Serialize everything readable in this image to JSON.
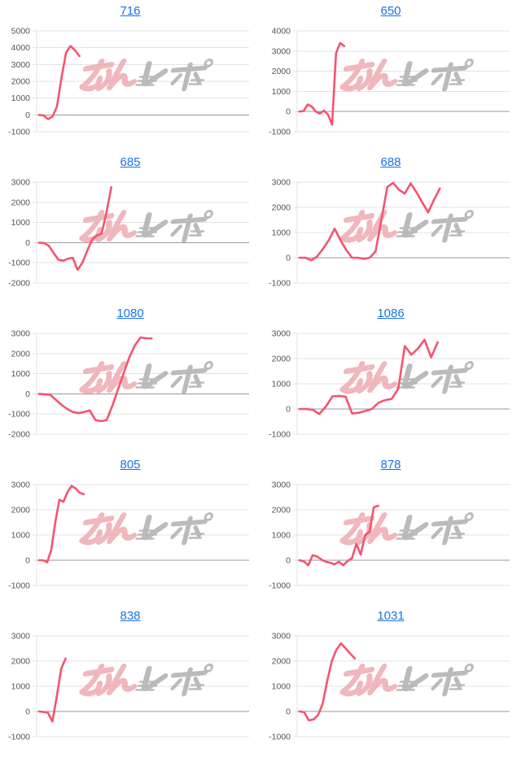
{
  "page": {
    "background": "#ffffff",
    "watermark_text": "みんレポ"
  },
  "colors": {
    "line": "#f4546e",
    "link": "#1a73e8",
    "grid": "#e3e3e3",
    "zero_axis": "#9a9a9a",
    "tick_label": "#555555",
    "watermark_pink": "#eda6ad",
    "watermark_gray": "#ababab"
  },
  "chart_data": [
    {
      "type": "line",
      "title": "716",
      "y_ticks": [
        5000,
        4000,
        3000,
        2000,
        1000,
        0,
        -1000
      ],
      "ylim": [
        -1000,
        5000
      ],
      "span": 0.19,
      "grid": true,
      "legend": "none",
      "values": [
        0,
        -30,
        -250,
        -100,
        500,
        2200,
        3700,
        4100,
        3850,
        3500
      ]
    },
    {
      "type": "line",
      "title": "650",
      "y_ticks": [
        4000,
        3000,
        2000,
        1000,
        0,
        -1000
      ],
      "ylim": [
        -1000,
        4000
      ],
      "span": 0.21,
      "grid": true,
      "legend": "none",
      "values": [
        0,
        30,
        350,
        250,
        0,
        -100,
        50,
        -150,
        -650,
        2900,
        3400,
        3250
      ]
    },
    {
      "type": "line",
      "title": "685",
      "y_ticks": [
        3000,
        2000,
        1000,
        0,
        -1000,
        -2000
      ],
      "ylim": [
        -2000,
        3000
      ],
      "span": 0.34,
      "grid": true,
      "legend": "none",
      "values": [
        0,
        -20,
        -150,
        -500,
        -850,
        -900,
        -800,
        -750,
        -1350,
        -1000,
        -400,
        150,
        350,
        450,
        1500,
        2750
      ]
    },
    {
      "type": "line",
      "title": "688",
      "y_ticks": [
        3000,
        2000,
        1000,
        0,
        -1000
      ],
      "ylim": [
        -1000,
        3000
      ],
      "span": 0.66,
      "grid": true,
      "legend": "none",
      "values": [
        0,
        0,
        -100,
        50,
        350,
        700,
        1150,
        700,
        300,
        0,
        0,
        -50,
        0,
        250,
        1500,
        2800,
        2970,
        2700,
        2550,
        2950,
        2600,
        2200,
        1800,
        2300,
        2750
      ]
    },
    {
      "type": "line",
      "title": "1080",
      "y_ticks": [
        3000,
        2000,
        1000,
        0,
        -1000,
        -2000
      ],
      "ylim": [
        -2000,
        3000
      ],
      "span": 0.53,
      "grid": true,
      "legend": "none",
      "values": [
        0,
        -20,
        -50,
        -300,
        -550,
        -750,
        -900,
        -950,
        -900,
        -820,
        -1300,
        -1350,
        -1300,
        -600,
        200,
        1000,
        1800,
        2400,
        2800,
        2760,
        2750
      ]
    },
    {
      "type": "line",
      "title": "1086",
      "y_ticks": [
        3000,
        2000,
        1000,
        0,
        -1000
      ],
      "ylim": [
        -1000,
        3000
      ],
      "span": 0.65,
      "grid": true,
      "legend": "none",
      "values": [
        0,
        0,
        -30,
        -200,
        100,
        500,
        520,
        490,
        -180,
        -150,
        -80,
        0,
        250,
        350,
        400,
        800,
        2500,
        2150,
        2400,
        2750,
        2050,
        2650
      ]
    },
    {
      "type": "line",
      "title": "805",
      "y_ticks": [
        3000,
        2000,
        1000,
        0,
        -1000
      ],
      "ylim": [
        -1000,
        3000
      ],
      "span": 0.21,
      "grid": true,
      "legend": "none",
      "values": [
        0,
        0,
        -80,
        400,
        1500,
        2400,
        2320,
        2700,
        2950,
        2850,
        2680,
        2620
      ]
    },
    {
      "type": "line",
      "title": "878",
      "y_ticks": [
        3000,
        2000,
        1000,
        0,
        -1000
      ],
      "ylim": [
        -1000,
        3000
      ],
      "span": 0.37,
      "grid": true,
      "legend": "none",
      "values": [
        0,
        -50,
        -200,
        200,
        150,
        30,
        -60,
        -100,
        -160,
        -60,
        -200,
        -30,
        80,
        650,
        220,
        1000,
        1120,
        2100,
        2160
      ]
    },
    {
      "type": "line",
      "title": "838",
      "y_ticks": [
        3000,
        2000,
        1000,
        0,
        -1000
      ],
      "ylim": [
        -1000,
        3000
      ],
      "span": 0.125,
      "grid": true,
      "legend": "none",
      "values": [
        0,
        -20,
        -50,
        -400,
        600,
        1700,
        2100
      ]
    },
    {
      "type": "line",
      "title": "1031",
      "y_ticks": [
        3000,
        2000,
        1000,
        0,
        -1000
      ],
      "ylim": [
        -1000,
        3000
      ],
      "span": 0.26,
      "grid": true,
      "legend": "none",
      "values": [
        0,
        -30,
        -350,
        -320,
        -150,
        300,
        1200,
        2000,
        2450,
        2700,
        2500,
        2300,
        2100
      ]
    }
  ]
}
